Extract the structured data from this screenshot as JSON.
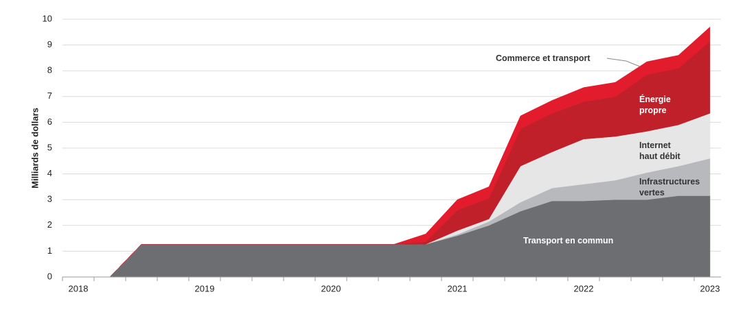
{
  "chart_data": {
    "type": "stacked-area",
    "y_label": "Milliards de dollars",
    "categories": [
      "2018",
      null,
      null,
      null,
      "2019",
      null,
      null,
      null,
      "2020",
      null,
      null,
      null,
      "2021",
      null,
      null,
      null,
      "2022",
      null,
      null,
      null,
      "2023"
    ],
    "series": [
      {
        "name": "Transport en commun",
        "color": "#6d6e71",
        "label_color": "#ffffff",
        "values": [
          null,
          0,
          1.27,
          1.27,
          1.27,
          1.27,
          1.27,
          1.27,
          1.27,
          1.27,
          1.27,
          1.27,
          1.6,
          2.0,
          2.55,
          2.95,
          2.95,
          3.0,
          3.0,
          3.15,
          3.15
        ]
      },
      {
        "name": "Infrastructures vertes",
        "color": "#b8b9bc",
        "label_color": "#333333",
        "values": [
          null,
          0,
          0,
          0,
          0,
          0,
          0,
          0,
          0,
          0,
          0,
          0,
          0.05,
          0.15,
          0.35,
          0.5,
          0.65,
          0.75,
          1.05,
          1.15,
          1.45
        ]
      },
      {
        "name": "Internet haut débit",
        "color": "#e6e6e7",
        "label_color": "#333333",
        "values": [
          null,
          0,
          0,
          0,
          0,
          0,
          0,
          0,
          0,
          0,
          0,
          0,
          0.15,
          0.1,
          1.4,
          1.4,
          1.75,
          1.7,
          1.6,
          1.6,
          1.75
        ]
      },
      {
        "name": "Énergie propre",
        "color": "#c0202a",
        "label_color": "#ffffff",
        "values": [
          null,
          0,
          0,
          0,
          0,
          0,
          0,
          0,
          0,
          0,
          0,
          0.1,
          0.8,
          0.8,
          1.45,
          1.5,
          1.45,
          1.55,
          2.2,
          2.2,
          2.8
        ]
      },
      {
        "name": "Commerce et transport",
        "color": "#e31c2d",
        "label_color": "#333333",
        "values": [
          null,
          0,
          0,
          0,
          0,
          0,
          0,
          0,
          0,
          0,
          0,
          0.3,
          0.4,
          0.45,
          0.5,
          0.5,
          0.55,
          0.55,
          0.5,
          0.5,
          0.55
        ]
      }
    ],
    "ylim": [
      0,
      10
    ],
    "yticks": [
      0,
      1,
      2,
      3,
      4,
      5,
      6,
      7,
      8,
      9,
      10
    ],
    "grid": true
  }
}
